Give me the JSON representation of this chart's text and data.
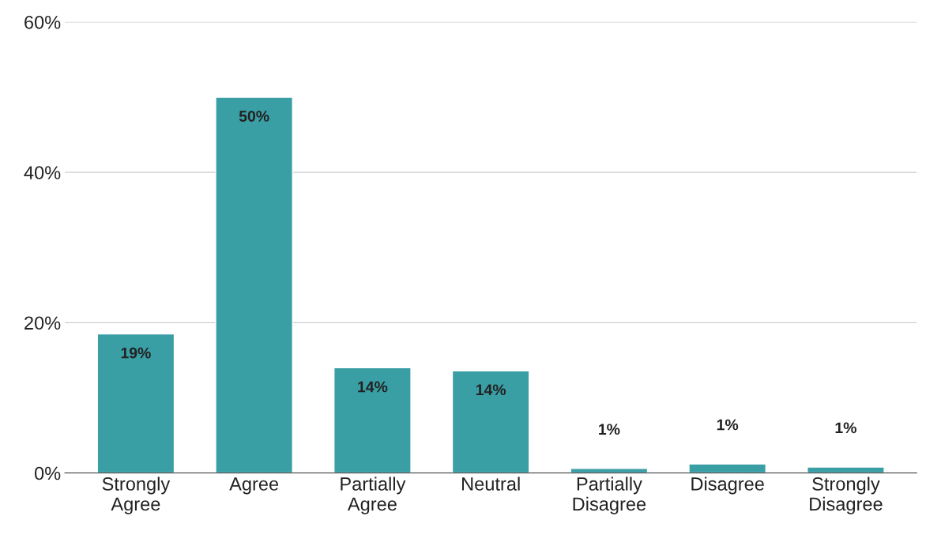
{
  "chart_data": {
    "type": "bar",
    "categories": [
      "Strongly\nAgree",
      "Agree",
      "Partially\nAgree",
      "Neutral",
      "Partially\nDisagree",
      "Disagree",
      "Strongly\nDisagree"
    ],
    "values": [
      18.5,
      50,
      14,
      13.6,
      0.6,
      1.2,
      0.8
    ],
    "value_labels": [
      "19%",
      "50%",
      "14%",
      "14%",
      "1%",
      "1%",
      "1%"
    ],
    "color": "#3a9ea5",
    "ylim": [
      0,
      60
    ],
    "yticks": [
      {
        "value": 0,
        "label": "0%"
      },
      {
        "value": 20,
        "label": "20%"
      },
      {
        "value": 40,
        "label": "40%"
      },
      {
        "value": 60,
        "label": "60%"
      }
    ],
    "grid": "y",
    "legend": false
  }
}
